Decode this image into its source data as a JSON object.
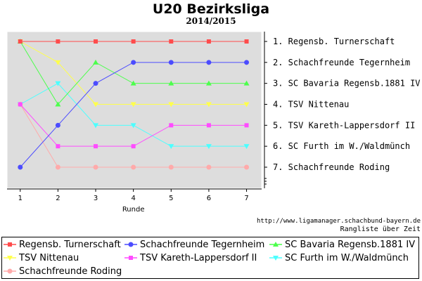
{
  "title": "U20 Bezirksliga",
  "subtitle": "2014/2015",
  "source_url": "http://www.ligamanager.schachbund-bayern.de",
  "caption": "Rangliste über Zeit",
  "chart_data": {
    "type": "line",
    "title": "U20 Bezirksliga",
    "subtitle": "2014/2015",
    "xlabel": "Runde",
    "ylabel": "",
    "x": [
      1,
      2,
      3,
      4,
      5,
      6,
      7
    ],
    "xlim": [
      0.65,
      7.4
    ],
    "ylim": [
      1,
      7
    ],
    "y_inverted": true,
    "grid": false,
    "background": "#dddddd",
    "right_labels": [
      "1. Regensb. Turnerschaft",
      "2. Schachfreunde Tegernheim",
      "3. SC Bavaria Regensb.1881 IV",
      "4. TSV Nittenau",
      "5. TSV Kareth-Lappersdorf II",
      "6. SC Furth im W./Waldmünch",
      "7. Schachfreunde Roding"
    ],
    "series": [
      {
        "name": "Regensb. Turnerschaft",
        "color": "#ff4c4c",
        "marker": "square",
        "values": [
          1,
          1,
          1,
          1,
          1,
          1,
          1
        ]
      },
      {
        "name": "Schachfreunde Tegernheim",
        "color": "#4c4cff",
        "marker": "circle",
        "values": [
          7,
          5,
          3,
          2,
          2,
          2,
          2
        ]
      },
      {
        "name": "SC Bavaria Regensb.1881 IV",
        "color": "#4cff4c",
        "marker": "triangle-up",
        "values": [
          1,
          4,
          2,
          3,
          3,
          3,
          3
        ]
      },
      {
        "name": "TSV Nittenau",
        "color": "#ffff4c",
        "marker": "triangle-down",
        "values": [
          1,
          2,
          4,
          4,
          4,
          4,
          4
        ]
      },
      {
        "name": "TSV Kareth-Lappersdorf II",
        "color": "#ff4cff",
        "marker": "square",
        "values": [
          4,
          6,
          6,
          6,
          5,
          5,
          5
        ]
      },
      {
        "name": "SC Furth im W./Waldmünch",
        "color": "#4cffff",
        "marker": "triangle-down",
        "values": [
          4,
          3,
          5,
          5,
          6,
          6,
          6
        ]
      },
      {
        "name": "Schachfreunde Roding",
        "color": "#ffaaaa",
        "marker": "circle",
        "values": [
          4,
          7,
          7,
          7,
          7,
          7,
          7
        ]
      }
    ],
    "legend_position": "bottom"
  }
}
